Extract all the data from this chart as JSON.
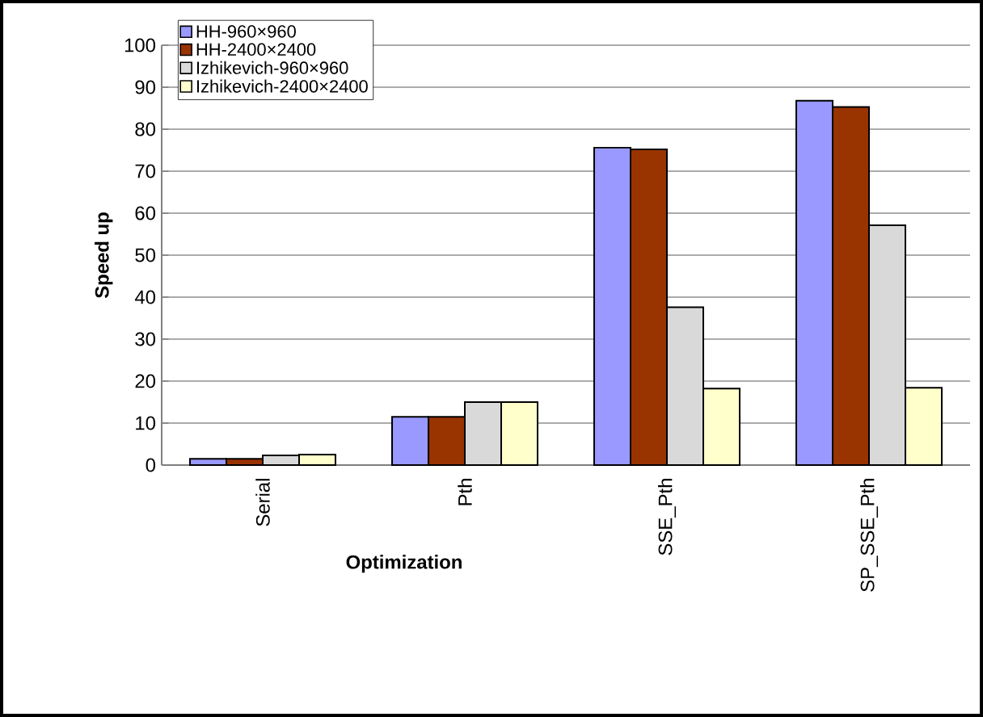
{
  "chart_data": {
    "type": "bar",
    "xlabel": "Optimization",
    "ylabel": "Speed up",
    "categories": [
      "Serial",
      "Pth",
      "SSE_Pth",
      "SP_SSE_Pth"
    ],
    "series": [
      {
        "name": "HH-960×960",
        "color": "#9999ff",
        "values": [
          1.5,
          11.5,
          75.6,
          86.8
        ]
      },
      {
        "name": "HH-2400×2400",
        "color": "#993300",
        "values": [
          1.5,
          11.5,
          75.2,
          85.3
        ]
      },
      {
        "name": "Izhikevich-960×960",
        "color": "#d9d9d9",
        "values": [
          2.3,
          15,
          37.6,
          57.1
        ]
      },
      {
        "name": "Izhikevich-2400×2400",
        "color": "#ffffcc",
        "values": [
          2.5,
          15,
          18.2,
          18.4
        ]
      }
    ],
    "ylim": [
      0,
      100
    ],
    "yticks": [
      0,
      10,
      20,
      30,
      40,
      50,
      60,
      70,
      80,
      90,
      100
    ],
    "grid": "y",
    "legend": "top left"
  }
}
